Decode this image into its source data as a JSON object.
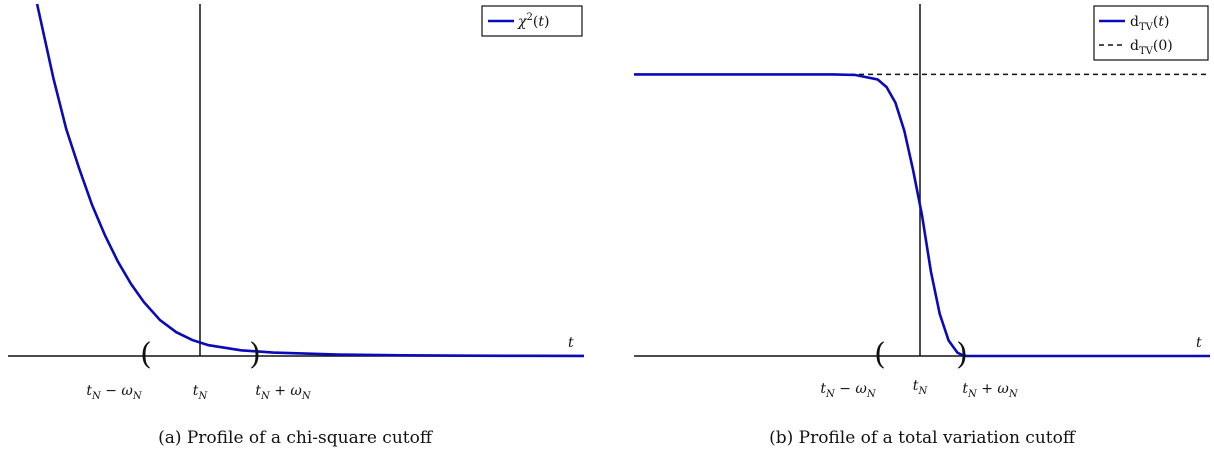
{
  "chart_data": [
    {
      "id": "left",
      "type": "line",
      "caption": "(a) Profile of a chi-square cutoff",
      "x_axis_label": "t",
      "ticks": {
        "left": "t_N − ω_N",
        "center": "t_N",
        "right": "t_N + ω_N"
      },
      "brackets": {
        "left": "(",
        "right": ")"
      },
      "legend": [
        {
          "label": "χ²(t)",
          "style": "solid",
          "color": "#0a0ab8"
        }
      ],
      "x_range": [
        -2.1,
        6.8
      ],
      "y_range": [
        0,
        6.2
      ],
      "tick_positions": [
        -1,
        0,
        1
      ],
      "series": [
        {
          "style": "solid",
          "x": [
            -1.65,
            -1.4,
            -1.2,
            -1.0,
            -0.8,
            -0.6,
            -0.4,
            -0.2,
            0.0,
            0.25,
            0.5,
            0.75,
            1.0,
            1.5,
            2.0,
            3.0,
            4.0,
            5.0,
            6.0,
            6.8
          ],
          "y": [
            6.2,
            4.9,
            4.0,
            3.3,
            2.66,
            2.12,
            1.66,
            1.27,
            0.95,
            0.63,
            0.42,
            0.28,
            0.19,
            0.1,
            0.06,
            0.025,
            0.012,
            0.006,
            0.003,
            0.002
          ]
        }
      ]
    },
    {
      "id": "right",
      "type": "line",
      "caption": "(b) Profile of a total variation cutoff",
      "x_axis_label": "t",
      "ticks": {
        "left": "t_N − ω_N",
        "center": "t_N",
        "right": "t_N + ω_N"
      },
      "brackets": {
        "left": "(",
        "right": ")"
      },
      "legend": [
        {
          "label": "d_TV(t)",
          "style": "solid",
          "color": "#0a0ab8"
        },
        {
          "label": "d_TV(0)",
          "style": "dashed",
          "color": "#111111"
        }
      ],
      "x_range": [
        -6.5,
        6.5
      ],
      "y_range": [
        0,
        1.25
      ],
      "tick_positions": [
        -1,
        0,
        1
      ],
      "series": [
        {
          "style": "solid",
          "x": [
            -6.5,
            -2.0,
            -1.5,
            -1.0,
            -0.8,
            -0.6,
            -0.4,
            -0.2,
            0.0,
            0.2,
            0.4,
            0.6,
            0.8,
            0.9,
            1.0,
            6.5
          ],
          "y": [
            1.0,
            1.0,
            0.998,
            0.982,
            0.955,
            0.9,
            0.8,
            0.66,
            0.5,
            0.3,
            0.15,
            0.055,
            0.012,
            0.004,
            0.0,
            0.0
          ]
        },
        {
          "style": "dashed",
          "x": [
            -6.5,
            6.5
          ],
          "y": [
            1.0,
            1.0
          ]
        }
      ]
    }
  ]
}
